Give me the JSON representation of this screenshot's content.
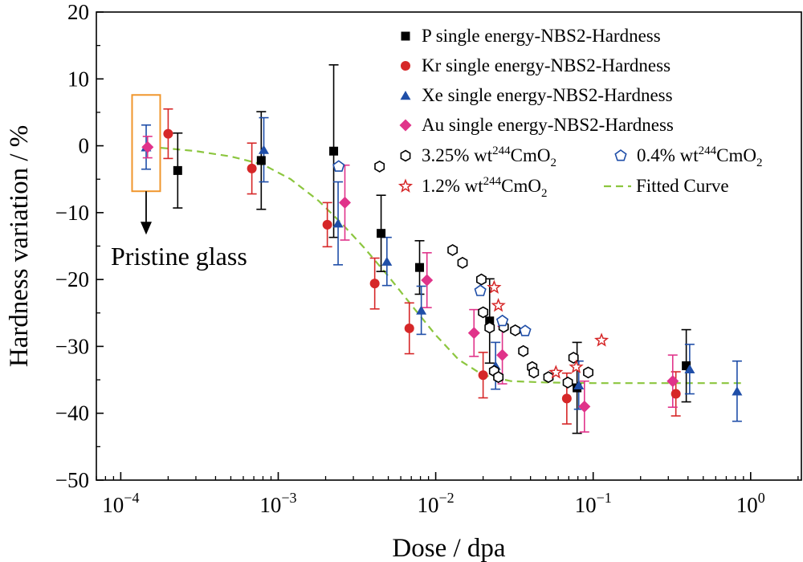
{
  "chart_data": {
    "type": "scatter",
    "xlabel": "Dose / dpa",
    "ylabel": "Hardness variation / %",
    "x_scale": "log",
    "xlim": [
      7e-05,
      2.1
    ],
    "ylim": [
      -50,
      20
    ],
    "y_ticks": [
      20,
      10,
      0,
      -10,
      -20,
      -30,
      -40,
      -50
    ],
    "y_tick_labels": [
      "20",
      "10",
      "0",
      "−10",
      "−20",
      "−30",
      "−40",
      "−50"
    ],
    "x_ticks": [
      {
        "value": 0.0001,
        "base": "10",
        "exp": "−4"
      },
      {
        "value": 0.001,
        "base": "10",
        "exp": "−3"
      },
      {
        "value": 0.01,
        "base": "10",
        "exp": "−2"
      },
      {
        "value": 0.1,
        "base": "10",
        "exp": "−1"
      },
      {
        "value": 1,
        "base": "10",
        "exp": "0"
      }
    ],
    "grid": false,
    "legend_position": "top-right",
    "series": [
      {
        "name": "P single energy-NBS2-Hardness",
        "marker": "square",
        "color": "#000000",
        "err_color": "#000000",
        "points": [
          {
            "x": 0.00023,
            "y": -3.7,
            "err": 5.6
          },
          {
            "x": 0.00078,
            "y": -2.2,
            "err": 7.3
          },
          {
            "x": 0.00225,
            "y": -0.8,
            "err": 12.9
          },
          {
            "x": 0.0045,
            "y": -13.1,
            "err": 5.7
          },
          {
            "x": 0.0079,
            "y": -18.2,
            "err": 4.0
          },
          {
            "x": 0.022,
            "y": -26.2,
            "err": 6.3
          },
          {
            "x": 0.079,
            "y": -36.2,
            "err": 6.8
          },
          {
            "x": 0.39,
            "y": -32.9,
            "err": 5.4
          }
        ]
      },
      {
        "name": "Kr single energy-NBS2-Hardness",
        "marker": "circle",
        "color": "#d62728",
        "err_color": "#d62728",
        "points": [
          {
            "x": 0.0002,
            "y": 1.8,
            "err": 3.7
          },
          {
            "x": 0.00068,
            "y": -3.4,
            "err": 3.8
          },
          {
            "x": 0.00205,
            "y": -11.8,
            "err": 3.3
          },
          {
            "x": 0.0041,
            "y": -20.6,
            "err": 3.8
          },
          {
            "x": 0.0068,
            "y": -27.3,
            "err": 3.8
          },
          {
            "x": 0.02,
            "y": -34.3,
            "err": 3.4
          },
          {
            "x": 0.068,
            "y": -37.8,
            "err": 3.8
          },
          {
            "x": 0.335,
            "y": -37.1,
            "err": 3.3
          }
        ]
      },
      {
        "name": "Xe single energy-NBS2-Hardness",
        "marker": "triangle",
        "color": "#1f4ea8",
        "err_color": "#1f4ea8",
        "points": [
          {
            "x": 0.000145,
            "y": -0.2,
            "err": 3.3
          },
          {
            "x": 0.00081,
            "y": -0.6,
            "err": 4.8
          },
          {
            "x": 0.0024,
            "y": -11.6,
            "err": 6.2
          },
          {
            "x": 0.0049,
            "y": -17.3,
            "err": 3.6
          },
          {
            "x": 0.0081,
            "y": -24.6,
            "err": 3.6
          },
          {
            "x": 0.024,
            "y": -32.9,
            "err": 3.5
          },
          {
            "x": 0.081,
            "y": -35.8,
            "err": 3.6
          },
          {
            "x": 0.41,
            "y": -33.4,
            "err": 3.7
          },
          {
            "x": 0.82,
            "y": -36.7,
            "err": 4.5
          }
        ]
      },
      {
        "name": "Au single energy-NBS2-Hardness",
        "marker": "diamond",
        "color": "#e0338a",
        "err_color": "#e0338a",
        "points": [
          {
            "x": 0.000148,
            "y": -0.2,
            "err": 1.6
          },
          {
            "x": 0.00265,
            "y": -8.5,
            "err": 5.6
          },
          {
            "x": 0.0088,
            "y": -20.1,
            "err": 4.1
          },
          {
            "x": 0.0175,
            "y": -28.0,
            "err": 3.5
          },
          {
            "x": 0.0265,
            "y": -31.3,
            "err": 4.3
          },
          {
            "x": 0.088,
            "y": -39.0,
            "err": 3.8
          },
          {
            "x": 0.32,
            "y": -35.2,
            "err": 3.9
          }
        ]
      },
      {
        "name": "3.25% wt",
        "name_sup": "244",
        "name_tail": "CmO",
        "name_sub": "2",
        "marker": "hexagon-open",
        "color": "#000000",
        "points": [
          {
            "x": 0.0044,
            "y": -3.1
          },
          {
            "x": 0.0128,
            "y": -15.6
          },
          {
            "x": 0.0148,
            "y": -17.5
          },
          {
            "x": 0.0195,
            "y": -20.0
          },
          {
            "x": 0.02,
            "y": -24.9
          },
          {
            "x": 0.022,
            "y": -27.2
          },
          {
            "x": 0.0235,
            "y": -33.7
          },
          {
            "x": 0.025,
            "y": -34.6
          },
          {
            "x": 0.027,
            "y": -27.1
          },
          {
            "x": 0.032,
            "y": -27.6
          },
          {
            "x": 0.036,
            "y": -30.7
          },
          {
            "x": 0.041,
            "y": -33.1
          },
          {
            "x": 0.042,
            "y": -33.9
          },
          {
            "x": 0.052,
            "y": -34.6
          },
          {
            "x": 0.069,
            "y": -35.4
          },
          {
            "x": 0.075,
            "y": -31.7
          },
          {
            "x": 0.093,
            "y": -33.9
          }
        ]
      },
      {
        "name": "0.4% wt",
        "name_sup": "244",
        "name_tail": "CmO",
        "name_sub": "2",
        "marker": "pentagon-open",
        "color": "#1f4ea8",
        "points": [
          {
            "x": 0.00242,
            "y": -3.1
          },
          {
            "x": 0.0192,
            "y": -21.7
          },
          {
            "x": 0.0265,
            "y": -26.2
          },
          {
            "x": 0.037,
            "y": -27.7
          }
        ]
      },
      {
        "name": "1.2% wt",
        "name_sup": "244",
        "name_tail": "CmO",
        "name_sub": "2",
        "marker": "star-open",
        "color": "#d62728",
        "points": [
          {
            "x": 0.0235,
            "y": -21.2
          },
          {
            "x": 0.025,
            "y": -23.9
          },
          {
            "x": 0.058,
            "y": -33.9
          },
          {
            "x": 0.078,
            "y": -33.1
          },
          {
            "x": 0.113,
            "y": -29.1
          }
        ]
      }
    ],
    "fitted_curve": {
      "name": "Fitted Curve",
      "color": "#8cc63f",
      "points": [
        {
          "x": 0.00018,
          "y": -0.3
        },
        {
          "x": 0.0003,
          "y": -0.8
        },
        {
          "x": 0.0005,
          "y": -1.6
        },
        {
          "x": 0.0008,
          "y": -2.8
        },
        {
          "x": 0.0012,
          "y": -5.0
        },
        {
          "x": 0.0018,
          "y": -8.2
        },
        {
          "x": 0.0025,
          "y": -11.5
        },
        {
          "x": 0.0035,
          "y": -15.2
        },
        {
          "x": 0.005,
          "y": -19.5
        },
        {
          "x": 0.007,
          "y": -23.8
        },
        {
          "x": 0.01,
          "y": -28.3
        },
        {
          "x": 0.014,
          "y": -32.0
        },
        {
          "x": 0.02,
          "y": -34.3
        },
        {
          "x": 0.03,
          "y": -35.2
        },
        {
          "x": 0.05,
          "y": -35.4
        },
        {
          "x": 0.1,
          "y": -35.5
        },
        {
          "x": 0.3,
          "y": -35.5
        },
        {
          "x": 0.9,
          "y": -35.5
        }
      ]
    },
    "annotation": {
      "text": "Pristine glass",
      "box_x": [
        0.000118,
        0.000178
      ],
      "box_y": [
        -6.8,
        7.6
      ],
      "box_color": "#f0962d"
    }
  }
}
